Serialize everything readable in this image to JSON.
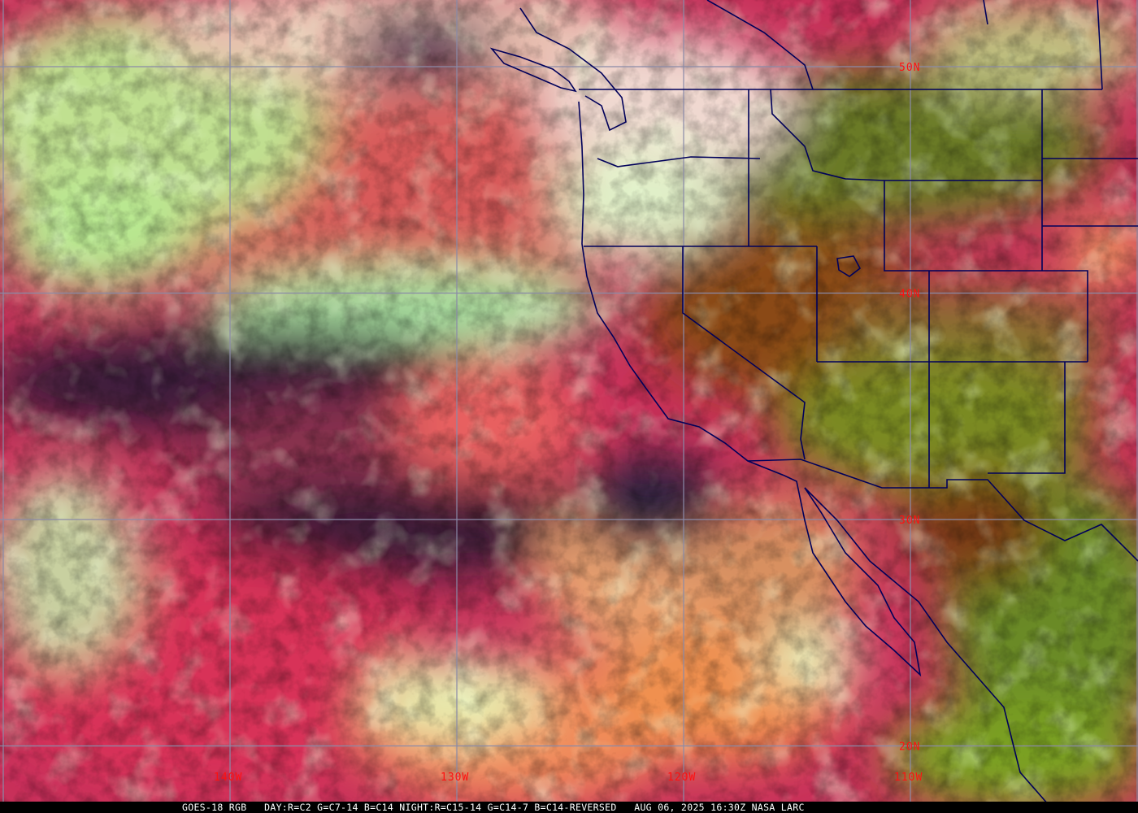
{
  "caption": "GOES-18 RGB   DAY:R=C2 G=C7-14 B=C14 NIGHT:R=C15-14 G=C14-7 B=C14-REVERSED   AUG 06, 2025 16:30Z NASA LARC",
  "grid": {
    "latitudes": [
      {
        "label": "50N",
        "value": 50
      },
      {
        "label": "40N",
        "value": 40
      },
      {
        "label": "30N",
        "value": 30
      },
      {
        "label": "20N",
        "value": 20
      }
    ],
    "longitudes": [
      {
        "label": "140W",
        "value": -140
      },
      {
        "label": "130W",
        "value": -130
      },
      {
        "label": "120W",
        "value": -120
      },
      {
        "label": "110W",
        "value": -110
      }
    ]
  },
  "colors": {
    "grid_line": "#8a8aa8",
    "grid_label": "#ff1010",
    "borders": "#00005a",
    "ocean_clear": "#c8305a",
    "low_cloud": "#ee8a60",
    "high_cloud": "#c8f0a0",
    "land": "#7a7a22"
  }
}
